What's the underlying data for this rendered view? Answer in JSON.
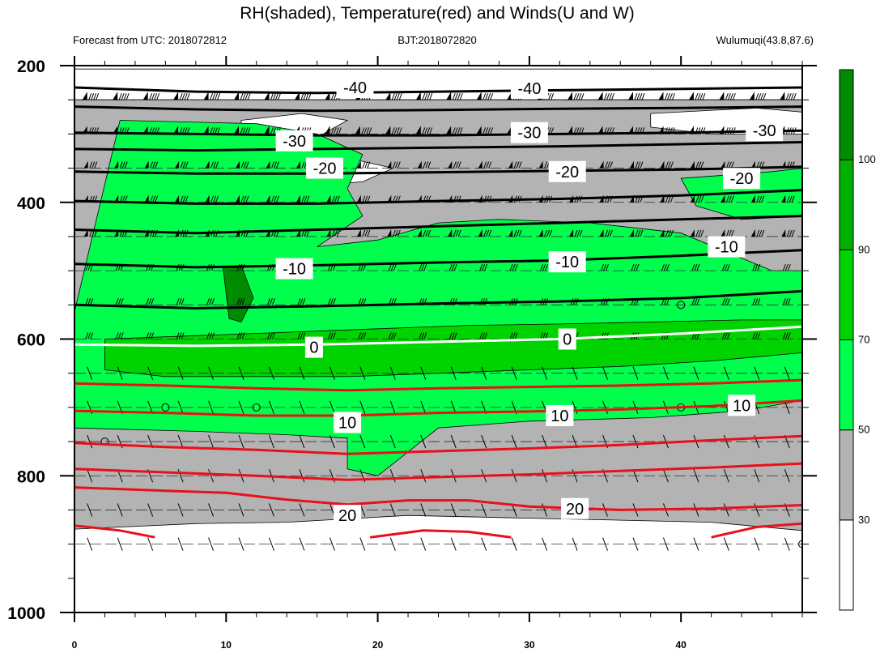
{
  "header": {
    "title": "RH(shaded), Temperature(red) and Winds(U and W)",
    "forecast": "Forecast from UTC: 2018072812",
    "bjt": "BJT:2018072820",
    "station": "Wulumuqi(43.8,87.6)"
  },
  "chart_data": {
    "type": "heatmap",
    "title": "RH(shaded), Temperature(red) and Winds(U and W)",
    "xlim": [
      0,
      48
    ],
    "ylim": [
      1000,
      200
    ],
    "x_ticks": [
      0,
      10,
      20,
      30,
      40
    ],
    "y_ticks": [
      200,
      400,
      600,
      800,
      1000
    ],
    "colorbar": {
      "levels": [
        30,
        50,
        70,
        90,
        100
      ],
      "colors": [
        "#ffffff",
        "#b3b3b3",
        "#00ff4c",
        "#00d400",
        "#00b000",
        "#008c00"
      ]
    },
    "rh_regions": [
      {
        "level": 0,
        "points": [
          [
            0,
            205
          ],
          [
            48,
            205
          ],
          [
            48,
            250
          ],
          [
            0,
            250
          ]
        ]
      },
      {
        "level": 1,
        "points": [
          [
            0,
            250
          ],
          [
            48,
            250
          ],
          [
            48,
            880
          ],
          [
            42,
            868
          ],
          [
            30,
            862
          ],
          [
            22,
            858
          ],
          [
            14,
            868
          ],
          [
            8,
            870
          ],
          [
            0,
            878
          ]
        ]
      },
      {
        "level": 0,
        "points": [
          [
            11,
            280
          ],
          [
            15,
            270
          ],
          [
            18,
            280
          ],
          [
            16,
            305
          ],
          [
            13,
            315
          ],
          [
            11,
            300
          ]
        ]
      },
      {
        "level": 0,
        "points": [
          [
            14,
            345
          ],
          [
            18,
            335
          ],
          [
            21,
            350
          ],
          [
            19,
            370
          ],
          [
            16,
            375
          ],
          [
            14,
            360
          ]
        ]
      },
      {
        "level": 0,
        "points": [
          [
            38,
            270
          ],
          [
            45,
            262
          ],
          [
            48,
            268
          ],
          [
            48,
            300
          ],
          [
            42,
            300
          ],
          [
            38,
            290
          ]
        ]
      },
      {
        "level": 2,
        "points": [
          [
            0,
            560
          ],
          [
            3,
            280
          ],
          [
            12,
            285
          ],
          [
            16,
            300
          ],
          [
            19,
            330
          ],
          [
            18,
            380
          ],
          [
            19,
            420
          ],
          [
            16,
            465
          ],
          [
            20,
            455
          ],
          [
            24,
            430
          ],
          [
            28,
            425
          ],
          [
            34,
            430
          ],
          [
            40,
            445
          ],
          [
            46,
            500
          ],
          [
            48,
            500
          ],
          [
            48,
            690
          ],
          [
            44,
            705
          ],
          [
            38,
            715
          ],
          [
            30,
            720
          ],
          [
            24,
            730
          ],
          [
            20,
            800
          ],
          [
            18,
            790
          ],
          [
            18,
            745
          ],
          [
            14,
            740
          ],
          [
            8,
            735
          ],
          [
            0,
            730
          ]
        ]
      },
      {
        "level": 2,
        "points": [
          [
            40,
            365
          ],
          [
            46,
            355
          ],
          [
            48,
            350
          ],
          [
            48,
            420
          ],
          [
            44,
            425
          ],
          [
            41,
            405
          ]
        ]
      },
      {
        "level": 3,
        "points": [
          [
            2,
            600
          ],
          [
            8,
            595
          ],
          [
            14,
            590
          ],
          [
            20,
            585
          ],
          [
            26,
            580
          ],
          [
            32,
            578
          ],
          [
            38,
            575
          ],
          [
            44,
            572
          ],
          [
            48,
            572
          ],
          [
            48,
            620
          ],
          [
            42,
            632
          ],
          [
            36,
            640
          ],
          [
            30,
            645
          ],
          [
            24,
            650
          ],
          [
            18,
            655
          ],
          [
            12,
            655
          ],
          [
            6,
            655
          ],
          [
            2,
            645
          ]
        ]
      },
      {
        "level": 5,
        "points": [
          [
            9.8,
            495
          ],
          [
            11,
            492
          ],
          [
            11.8,
            540
          ],
          [
            11,
            575
          ],
          [
            10.2,
            570
          ]
        ]
      }
    ],
    "temperature_red": [
      {
        "value": 10,
        "points": [
          [
            0,
            665
          ],
          [
            6,
            668
          ],
          [
            12,
            672
          ],
          [
            18,
            675
          ],
          [
            24,
            672
          ],
          [
            30,
            670
          ],
          [
            36,
            668
          ],
          [
            42,
            665
          ],
          [
            48,
            660
          ]
        ]
      },
      {
        "value": 10,
        "points": [
          [
            0,
            705
          ],
          [
            6,
            708
          ],
          [
            12,
            712
          ],
          [
            18,
            712
          ],
          [
            24,
            708
          ],
          [
            30,
            706
          ],
          [
            36,
            703
          ],
          [
            42,
            698
          ],
          [
            48,
            690
          ]
        ]
      },
      {
        "value": 10,
        "points": [
          [
            0,
            752
          ],
          [
            6,
            758
          ],
          [
            12,
            762
          ],
          [
            18,
            768
          ],
          [
            24,
            764
          ],
          [
            30,
            760
          ],
          [
            36,
            755
          ],
          [
            42,
            748
          ],
          [
            48,
            742
          ]
        ]
      },
      {
        "value": 20,
        "points": [
          [
            0,
            790
          ],
          [
            6,
            795
          ],
          [
            12,
            800
          ],
          [
            18,
            806
          ],
          [
            24,
            802
          ],
          [
            30,
            798
          ],
          [
            36,
            793
          ],
          [
            42,
            788
          ],
          [
            48,
            782
          ]
        ]
      },
      {
        "value": 20,
        "points": [
          [
            0,
            817
          ],
          [
            6,
            822
          ],
          [
            10,
            825
          ],
          [
            14,
            835
          ],
          [
            18,
            842
          ],
          [
            22,
            836
          ],
          [
            26,
            836
          ],
          [
            30,
            845
          ],
          [
            36,
            850
          ],
          [
            42,
            848
          ],
          [
            48,
            843
          ]
        ]
      },
      {
        "value": 20,
        "points": [
          [
            0,
            873
          ],
          [
            3,
            880
          ],
          [
            5.3,
            890
          ]
        ]
      },
      {
        "value": 20,
        "points": [
          [
            19.5,
            890
          ],
          [
            23,
            880
          ],
          [
            26,
            882
          ],
          [
            28.8,
            890
          ]
        ]
      },
      {
        "value": 20,
        "points": [
          [
            42,
            890
          ],
          [
            45,
            875
          ],
          [
            48,
            870
          ]
        ]
      }
    ],
    "temperature_black": [
      {
        "value": -40,
        "points": [
          [
            0,
            232
          ],
          [
            8,
            238
          ],
          [
            16,
            240
          ],
          [
            24,
            238
          ],
          [
            32,
            236
          ],
          [
            40,
            234
          ],
          [
            48,
            232
          ]
        ]
      },
      {
        "value": -40,
        "points": [
          [
            0,
            260
          ],
          [
            8,
            264
          ],
          [
            16,
            266
          ],
          [
            24,
            265
          ],
          [
            32,
            263
          ],
          [
            40,
            262
          ],
          [
            48,
            260
          ]
        ]
      },
      {
        "value": -30,
        "points": [
          [
            0,
            298
          ],
          [
            8,
            300
          ],
          [
            16,
            302
          ],
          [
            24,
            302
          ],
          [
            32,
            300
          ],
          [
            40,
            298
          ],
          [
            48,
            295
          ]
        ]
      },
      {
        "value": -30,
        "points": [
          [
            0,
            322
          ],
          [
            8,
            324
          ],
          [
            16,
            322
          ],
          [
            24,
            320
          ],
          [
            32,
            318
          ],
          [
            40,
            315
          ],
          [
            48,
            312
          ]
        ]
      },
      {
        "value": -20,
        "points": [
          [
            0,
            355
          ],
          [
            8,
            358
          ],
          [
            16,
            358
          ],
          [
            24,
            356
          ],
          [
            32,
            354
          ],
          [
            40,
            352
          ],
          [
            48,
            348
          ]
        ]
      },
      {
        "value": -20,
        "points": [
          [
            0,
            398
          ],
          [
            8,
            402
          ],
          [
            16,
            402
          ],
          [
            24,
            398
          ],
          [
            32,
            395
          ],
          [
            40,
            390
          ],
          [
            48,
            382
          ]
        ]
      },
      {
        "value": -10,
        "points": [
          [
            0,
            440
          ],
          [
            8,
            445
          ],
          [
            16,
            440
          ],
          [
            24,
            435
          ],
          [
            32,
            430
          ],
          [
            40,
            425
          ],
          [
            48,
            420
          ]
        ]
      },
      {
        "value": -10,
        "points": [
          [
            0,
            490
          ],
          [
            8,
            495
          ],
          [
            16,
            492
          ],
          [
            24,
            488
          ],
          [
            32,
            485
          ],
          [
            40,
            478
          ],
          [
            48,
            470
          ]
        ]
      },
      {
        "value": -10,
        "points": [
          [
            0,
            550
          ],
          [
            8,
            555
          ],
          [
            16,
            552
          ],
          [
            24,
            548
          ],
          [
            32,
            545
          ],
          [
            40,
            540
          ],
          [
            48,
            530
          ]
        ]
      }
    ],
    "temperature_white": [
      {
        "value": 0,
        "points": [
          [
            0,
            608
          ],
          [
            8,
            610
          ],
          [
            16,
            608
          ],
          [
            24,
            604
          ],
          [
            32,
            600
          ],
          [
            40,
            592
          ],
          [
            48,
            582
          ]
        ]
      }
    ],
    "contour_labels": [
      {
        "text": "-40",
        "x": 18.5,
        "y": 232
      },
      {
        "text": "-40",
        "x": 30,
        "y": 233
      },
      {
        "text": "-30",
        "x": 14.5,
        "y": 310
      },
      {
        "text": "-30",
        "x": 30,
        "y": 298
      },
      {
        "text": "-30",
        "x": 45.5,
        "y": 295
      },
      {
        "text": "-20",
        "x": 16.5,
        "y": 350
      },
      {
        "text": "-20",
        "x": 32.5,
        "y": 355
      },
      {
        "text": "-20",
        "x": 44,
        "y": 365
      },
      {
        "text": "-10",
        "x": 14.5,
        "y": 497
      },
      {
        "text": "-10",
        "x": 32.5,
        "y": 487
      },
      {
        "text": "-10",
        "x": 43,
        "y": 465
      },
      {
        "text": "0",
        "x": 15.8,
        "y": 612
      },
      {
        "text": "0",
        "x": 32.5,
        "y": 600
      },
      {
        "text": "10",
        "x": 18,
        "y": 722
      },
      {
        "text": "10",
        "x": 32,
        "y": 712
      },
      {
        "text": "10",
        "x": 44,
        "y": 697
      },
      {
        "text": "20",
        "x": 18,
        "y": 858
      },
      {
        "text": "20",
        "x": 33,
        "y": 848
      }
    ],
    "wind_levels": [
      250,
      300,
      350,
      400,
      450,
      500,
      550,
      600,
      650,
      700,
      750,
      800,
      850,
      900
    ],
    "calm_points": [
      [
        6,
        700
      ],
      [
        12,
        700
      ],
      [
        40,
        700
      ],
      [
        2,
        750
      ],
      [
        40,
        550
      ],
      [
        48,
        900
      ]
    ]
  }
}
